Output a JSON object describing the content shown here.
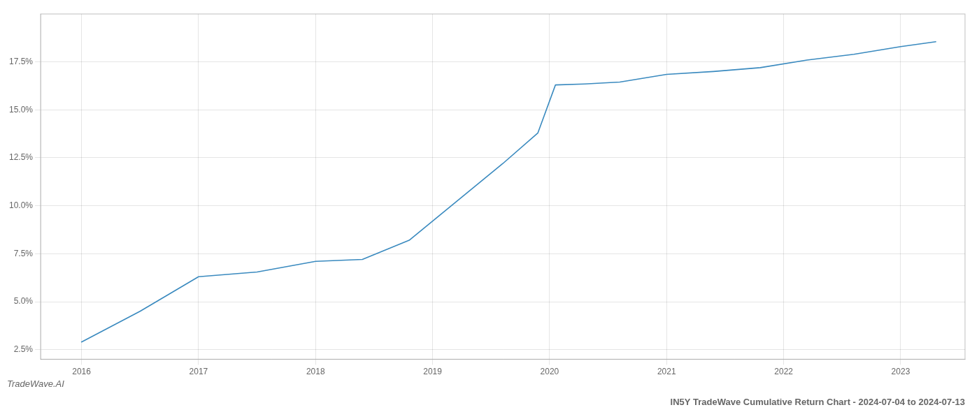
{
  "chart_data": {
    "type": "line",
    "title": "IN5Y TradeWave Cumulative Return Chart - 2024-07-04 to 2024-07-13",
    "annotations": [
      "TradeWave.AI"
    ],
    "x": [
      2016.0,
      2016.5,
      2017.0,
      2017.5,
      2018.0,
      2018.4,
      2018.8,
      2019.2,
      2019.6,
      2019.9,
      2020.05,
      2020.3,
      2020.6,
      2021.0,
      2021.4,
      2021.8,
      2022.2,
      2022.6,
      2023.0,
      2023.3
    ],
    "values": [
      2.9,
      4.5,
      6.3,
      6.55,
      7.1,
      7.2,
      8.2,
      10.2,
      12.2,
      13.8,
      16.3,
      16.35,
      16.45,
      16.85,
      17.0,
      17.2,
      17.6,
      17.9,
      18.3,
      18.55
    ],
    "color": "#3a8abf",
    "xlim": [
      2015.65,
      2023.55
    ],
    "ylim": [
      2.0,
      20.0
    ],
    "xticks": [
      2016,
      2017,
      2018,
      2019,
      2020,
      2021,
      2022,
      2023
    ],
    "yticks": [
      {
        "value": 2.5,
        "label": "2.5%"
      },
      {
        "value": 5.0,
        "label": "5.0%"
      },
      {
        "value": 7.5,
        "label": "7.5%"
      },
      {
        "value": 10.0,
        "label": "10.0%"
      },
      {
        "value": 12.5,
        "label": "12.5%"
      },
      {
        "value": 15.0,
        "label": "15.0%"
      },
      {
        "value": 17.5,
        "label": "17.5%"
      }
    ],
    "grid": true
  }
}
